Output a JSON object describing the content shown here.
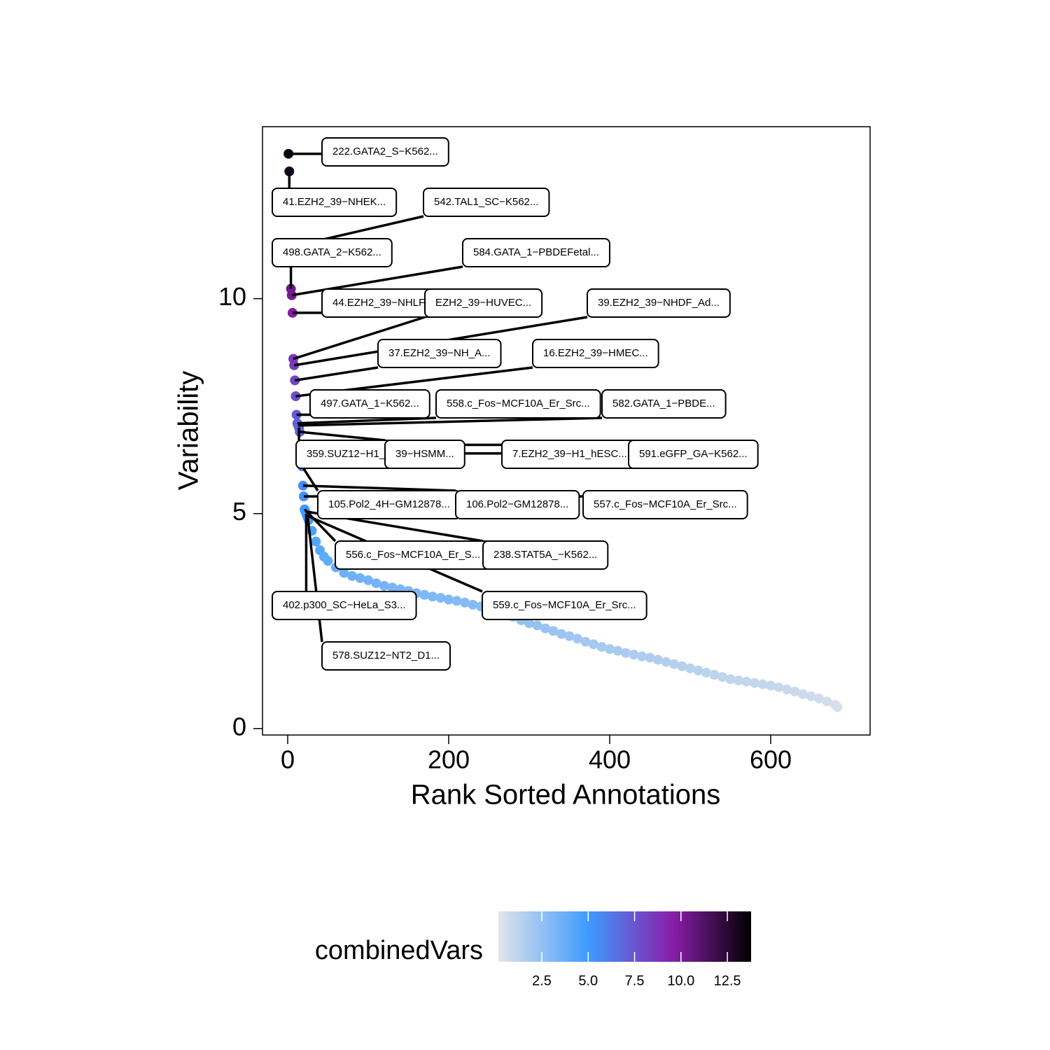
{
  "chart_data": {
    "type": "scatter",
    "xlabel": "Rank Sorted Annotations",
    "ylabel": "Variability",
    "xlim": [
      -31.3,
      723.5
    ],
    "ylim": [
      -0.15,
      14.0
    ],
    "xticks": [
      0,
      200,
      400,
      600
    ],
    "yticks": [
      0,
      5,
      10
    ],
    "x": [
      26,
      30,
      35,
      40,
      45,
      50,
      60,
      70,
      80,
      90,
      100,
      110,
      120,
      130,
      140,
      150,
      160,
      170,
      180,
      190,
      200,
      210,
      220,
      230,
      240,
      250,
      260,
      270,
      280,
      290,
      300,
      310,
      320,
      330,
      340,
      350,
      360,
      370,
      380,
      390,
      400,
      410,
      420,
      430,
      440,
      450,
      460,
      470,
      480,
      490,
      500,
      510,
      520,
      530,
      540,
      550,
      560,
      570,
      580,
      590,
      600,
      610,
      620,
      630,
      640,
      650,
      660,
      670,
      680,
      683
    ],
    "values": [
      4.85,
      4.6,
      4.35,
      4.15,
      4.0,
      3.9,
      3.75,
      3.62,
      3.55,
      3.5,
      3.45,
      3.38,
      3.32,
      3.28,
      3.24,
      3.2,
      3.15,
      3.11,
      3.07,
      3.04,
      3.0,
      2.97,
      2.93,
      2.88,
      2.84,
      2.8,
      2.74,
      2.66,
      2.6,
      2.52,
      2.45,
      2.4,
      2.33,
      2.27,
      2.2,
      2.15,
      2.09,
      2.02,
      1.96,
      1.9,
      1.85,
      1.81,
      1.76,
      1.72,
      1.68,
      1.65,
      1.6,
      1.55,
      1.5,
      1.45,
      1.4,
      1.35,
      1.3,
      1.25,
      1.2,
      1.15,
      1.12,
      1.09,
      1.06,
      1.03,
      1.0,
      0.96,
      0.91,
      0.86,
      0.8,
      0.75,
      0.7,
      0.63,
      0.55,
      0.5
    ],
    "annotations": [
      {
        "label": "222.GATA2_S−K562...",
        "x": 1,
        "y": 13.37
      },
      {
        "label": "41.EZH2_39−NHEK...",
        "x": 2,
        "y": 12.96
      },
      {
        "label": "542.TAL1_SC−K562...",
        "x": 3,
        "y": 11.2
      },
      {
        "label": "498.GATA_2−K562...",
        "x": 4,
        "y": 10.23
      },
      {
        "label": "584.GATA_1−PBDEFetal...",
        "x": 5,
        "y": 10.08
      },
      {
        "label": "44.EZH2_39−NHLF...",
        "x": 6,
        "y": 9.67
      },
      {
        "label": "EZH2_39−HUVEC...",
        "x": 7,
        "y": 8.6
      },
      {
        "label": "39.EZH2_39−NHDF_Ad...",
        "x": 8,
        "y": 8.45
      },
      {
        "label": "37.EZH2_39−NH_A...",
        "x": 9,
        "y": 8.1
      },
      {
        "label": "16.EZH2_39−HMEC...",
        "x": 10,
        "y": 7.73
      },
      {
        "label": "497.GATA_1−K562...",
        "x": 11,
        "y": 7.3
      },
      {
        "label": "558.c_Fos−MCF10A_Er_Src...",
        "x": 12,
        "y": 7.1
      },
      {
        "label": "582.GATA_1−PBDE...",
        "x": 13,
        "y": 7.05
      },
      {
        "label": "359.SUZ12−H1_hESC...",
        "x": 14,
        "y": 7.0
      },
      {
        "label": "39−HSMM...",
        "x": 15,
        "y": 6.9
      },
      {
        "label": "7.EZH2_39−H1_hESC...",
        "x": 16,
        "y": 6.6
      },
      {
        "label": "591.eGFP_GA−K562...",
        "x": 17,
        "y": 6.4
      },
      {
        "label": "105.Pol2_4H−GM12878...",
        "x": 18,
        "y": 6.1
      },
      {
        "label": "106.Pol2−GM12878...",
        "x": 19,
        "y": 5.65
      },
      {
        "label": "557.c_Fos−MCF10A_Er_Src...",
        "x": 20,
        "y": 5.4
      },
      {
        "label": "556.c_Fos−MCF10A_Er_S...",
        "x": 21,
        "y": 5.1
      },
      {
        "label": "238.STAT5A_−K562...",
        "x": 22,
        "y": 5.05
      },
      {
        "label": "402.p300_SC−HeLa_S3...",
        "x": 23,
        "y": 5.0
      },
      {
        "label": "559.c_Fos−MCF10A_Er_Src...",
        "x": 24,
        "y": 4.95
      },
      {
        "label": "578.SUZ12−NT2_D1...",
        "x": 25,
        "y": 4.9
      }
    ],
    "colorbar": {
      "title": "combinedVars",
      "lim": [
        0.16,
        13.78
      ],
      "ticks": [
        2.5,
        {
          "value": 5,
          "label": "5.0"
        },
        7.5,
        {
          "value": 10,
          "label": "10.0"
        },
        12.5
      ],
      "scale": [
        {
          "value": 0.16,
          "color": "#e2e4e8"
        },
        {
          "value": 5,
          "color": "#3d9bff"
        },
        {
          "value": 9.5,
          "color": "#8a1eaa"
        },
        {
          "value": 13.78,
          "color": "#000000"
        }
      ]
    }
  }
}
